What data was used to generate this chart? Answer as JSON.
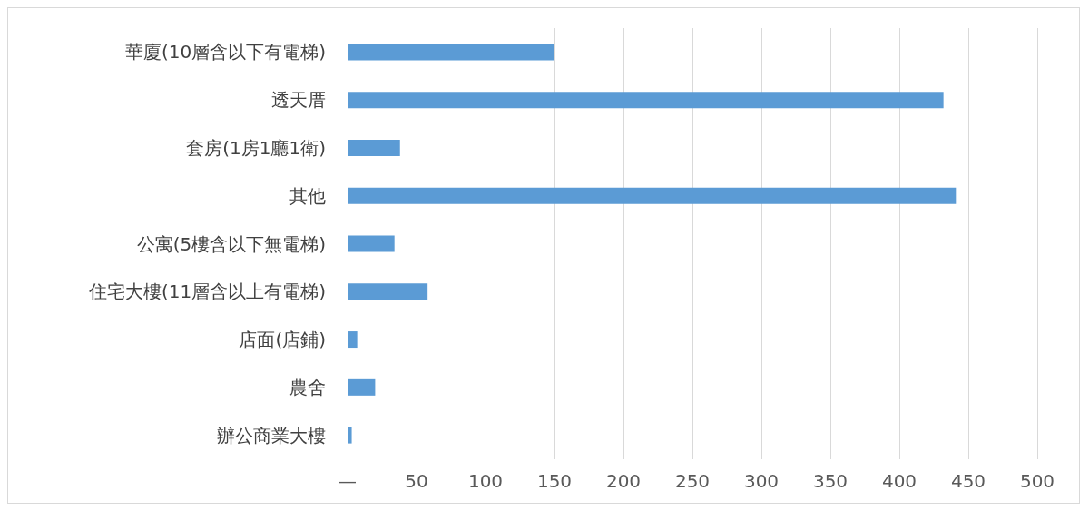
{
  "chart_data": {
    "type": "bar",
    "orientation": "horizontal",
    "categories": [
      "華廈(10層含以下有電梯)",
      "透天厝",
      "套房(1房1廳1衛)",
      "其他",
      "公寓(5樓含以下無電梯)",
      "住宅大樓(11層含以上有電梯)",
      "店面(店鋪)",
      "農舍",
      "辦公商業大樓"
    ],
    "values": [
      150,
      432,
      38,
      441,
      34,
      58,
      7,
      20,
      3
    ],
    "color": "#5b9bd5",
    "xlim": [
      0,
      500
    ],
    "xticks": [
      {
        "value": 0,
        "label": "—"
      },
      50,
      100,
      150,
      200,
      250,
      300,
      350,
      400,
      450,
      500
    ],
    "grid": "x"
  }
}
